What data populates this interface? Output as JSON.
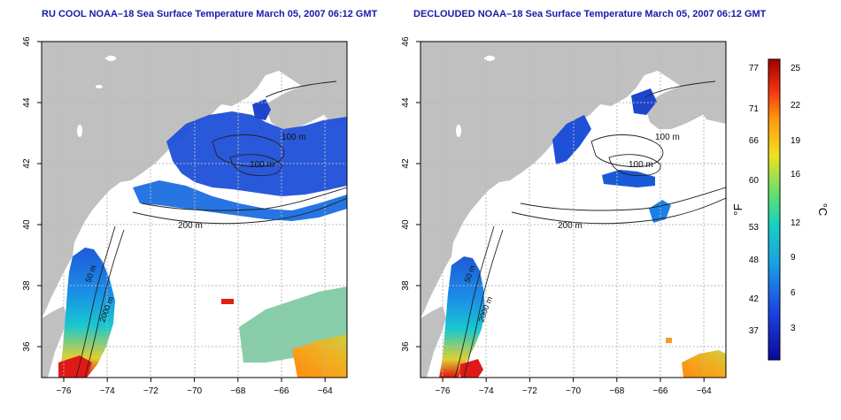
{
  "panels": [
    {
      "title": "RU COOL NOAA–18 Sea Surface Temperature March 05, 2007 06:12 GMT",
      "variant": "raw"
    },
    {
      "title": "DECLOUDED NOAA–18 Sea Surface Temperature March 05, 2007 06:12 GMT",
      "variant": "declouded"
    }
  ],
  "axes": {
    "x_ticks": [
      "−76",
      "−74",
      "−72",
      "−70",
      "−68",
      "−66",
      "−64"
    ],
    "y_ticks": [
      "46",
      "44",
      "42",
      "40",
      "38",
      "36"
    ],
    "lon_range": [
      -77,
      -63
    ],
    "lat_range": [
      35,
      46
    ]
  },
  "contours": {
    "left": [
      "100 m",
      "100 m",
      "200 m",
      "50 m",
      "2000 m"
    ],
    "right": [
      "100 m",
      "100 m",
      "200 m",
      "50 m",
      "2000 m"
    ]
  },
  "colorbar": {
    "f_label": "°F",
    "c_label": "°C",
    "f_ticks": [
      "77",
      "71",
      "66",
      "60",
      "53",
      "48",
      "42",
      "37"
    ],
    "c_ticks": [
      "25",
      "22",
      "19",
      "16",
      "12",
      "9",
      "6",
      "3"
    ],
    "colors": {
      "cold": "#0a0a9a",
      "cool": "#1e5ad6",
      "mid": "#18c8d0",
      "warm": "#f0e020",
      "hot": "#ff6a10",
      "max": "#a80000"
    }
  },
  "map_colors": {
    "land": "#c0c0c0",
    "ocean": "#ffffff",
    "grid": "#b8b8b8",
    "contour": "#222222"
  }
}
